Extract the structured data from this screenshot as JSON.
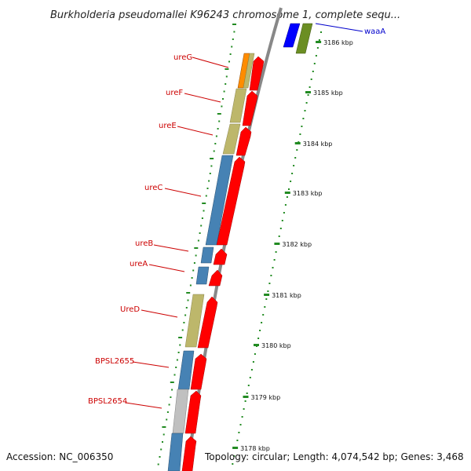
{
  "title": "Burkholderia pseudomallei K96243 chromosome 1, complete sequ...",
  "footer": {
    "accession": "Accession: NC_006350",
    "topology": "Topology: circular; Length: 4,074,542 bp; Genes: 3,468"
  },
  "colors": {
    "forward_cds": "#ff0000",
    "reverse_blue": "#4682b4",
    "reverse_khaki": "#bdb76b",
    "reverse_gray": "#c0c0c0",
    "reverse_orange": "#ff8c00",
    "label_red": "#cc0000",
    "label_blue": "#0000cc",
    "backbone": "#888888",
    "tick_green": "#228b22",
    "waaA_olive": "#6b8e23",
    "waaA_blue": "#0000ff"
  },
  "gene_labels": [
    {
      "name": "ureG"
    },
    {
      "name": "ureF"
    },
    {
      "name": "ureE"
    },
    {
      "name": "ureC"
    },
    {
      "name": "ureB"
    },
    {
      "name": "ureA"
    },
    {
      "name": "UreD"
    },
    {
      "name": "BPSL2655"
    },
    {
      "name": "BPSL2654"
    }
  ],
  "waaA_label": "waaA",
  "kbp_ticks": [
    "3186 kbp",
    "3185 kbp",
    "3184 kbp",
    "3183 kbp",
    "3182 kbp",
    "3181 kbp",
    "3180 kbp",
    "3179 kbp",
    "3178 kbp"
  ]
}
